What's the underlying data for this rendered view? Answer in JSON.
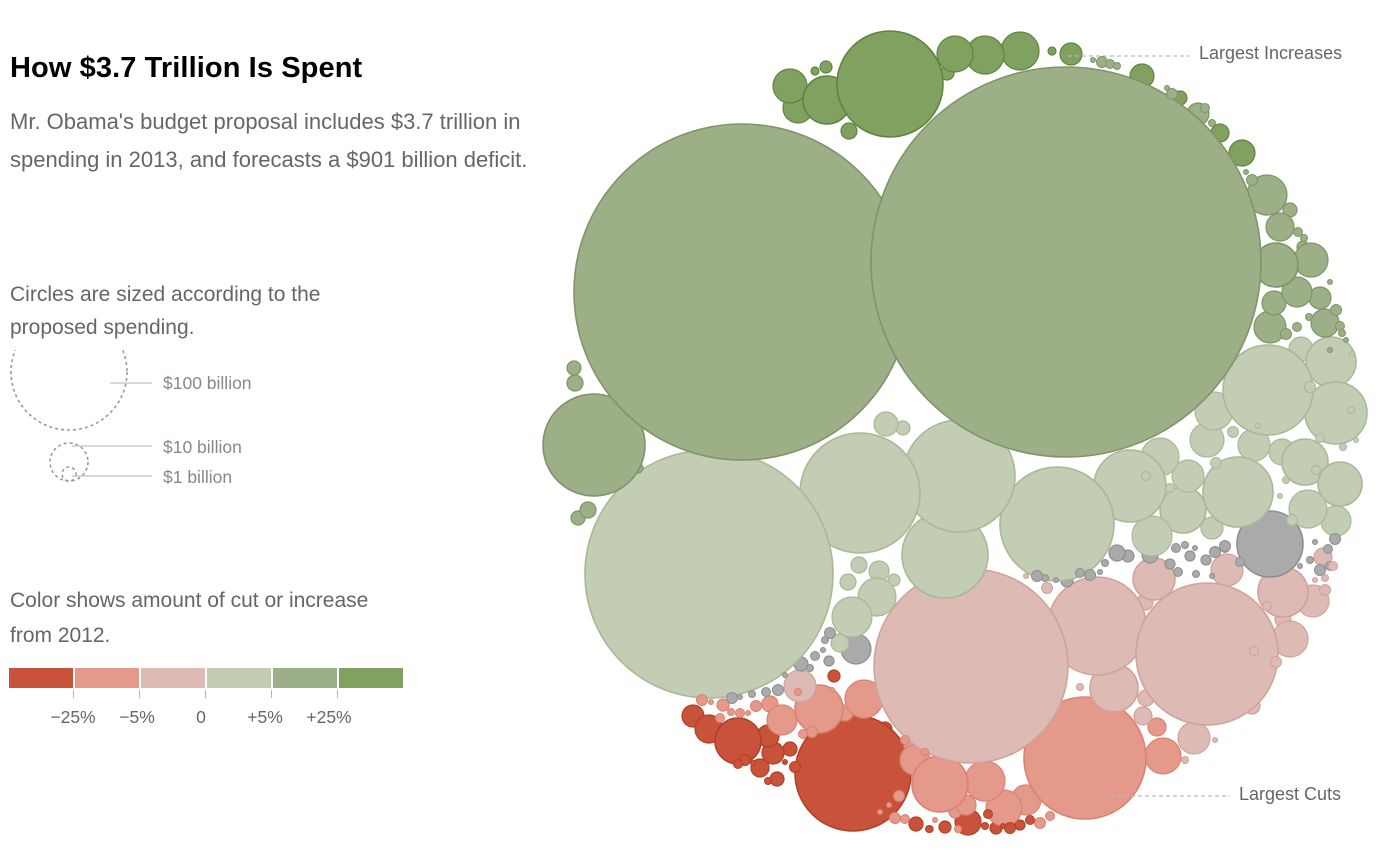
{
  "title": "How $3.7 Trillion Is Spent",
  "intro": "Mr. Obama's budget proposal includes $3.7 trillion in spending in 2013, and forecasts a $901 billion deficit.",
  "size_legend": {
    "caption": "Circles are sized according to the proposed spending.",
    "labels": [
      "$100 billion",
      "$10 billion",
      "$1 billion"
    ]
  },
  "color_legend": {
    "caption": "Color shows amount of cut or increase from 2012.",
    "colors": [
      "#c9523a",
      "#e4998a",
      "#ddbab4",
      "#c2cdb3",
      "#9daf87",
      "#80a160"
    ],
    "tick_labels": [
      "−25%",
      "−5%",
      "0",
      "+5%",
      "+25%"
    ]
  },
  "colors": {
    "big_cut": "#c9523a",
    "cut": "#e4998a",
    "small_cut": "#ddbab4",
    "small_increase": "#c2cdb3",
    "increase": "#9daf87",
    "big_increase": "#80a160",
    "no_change": "#aaaaaa"
  },
  "annotations": {
    "largest_increases": "Largest Increases",
    "largest_cuts": "Largest Cuts"
  }
}
